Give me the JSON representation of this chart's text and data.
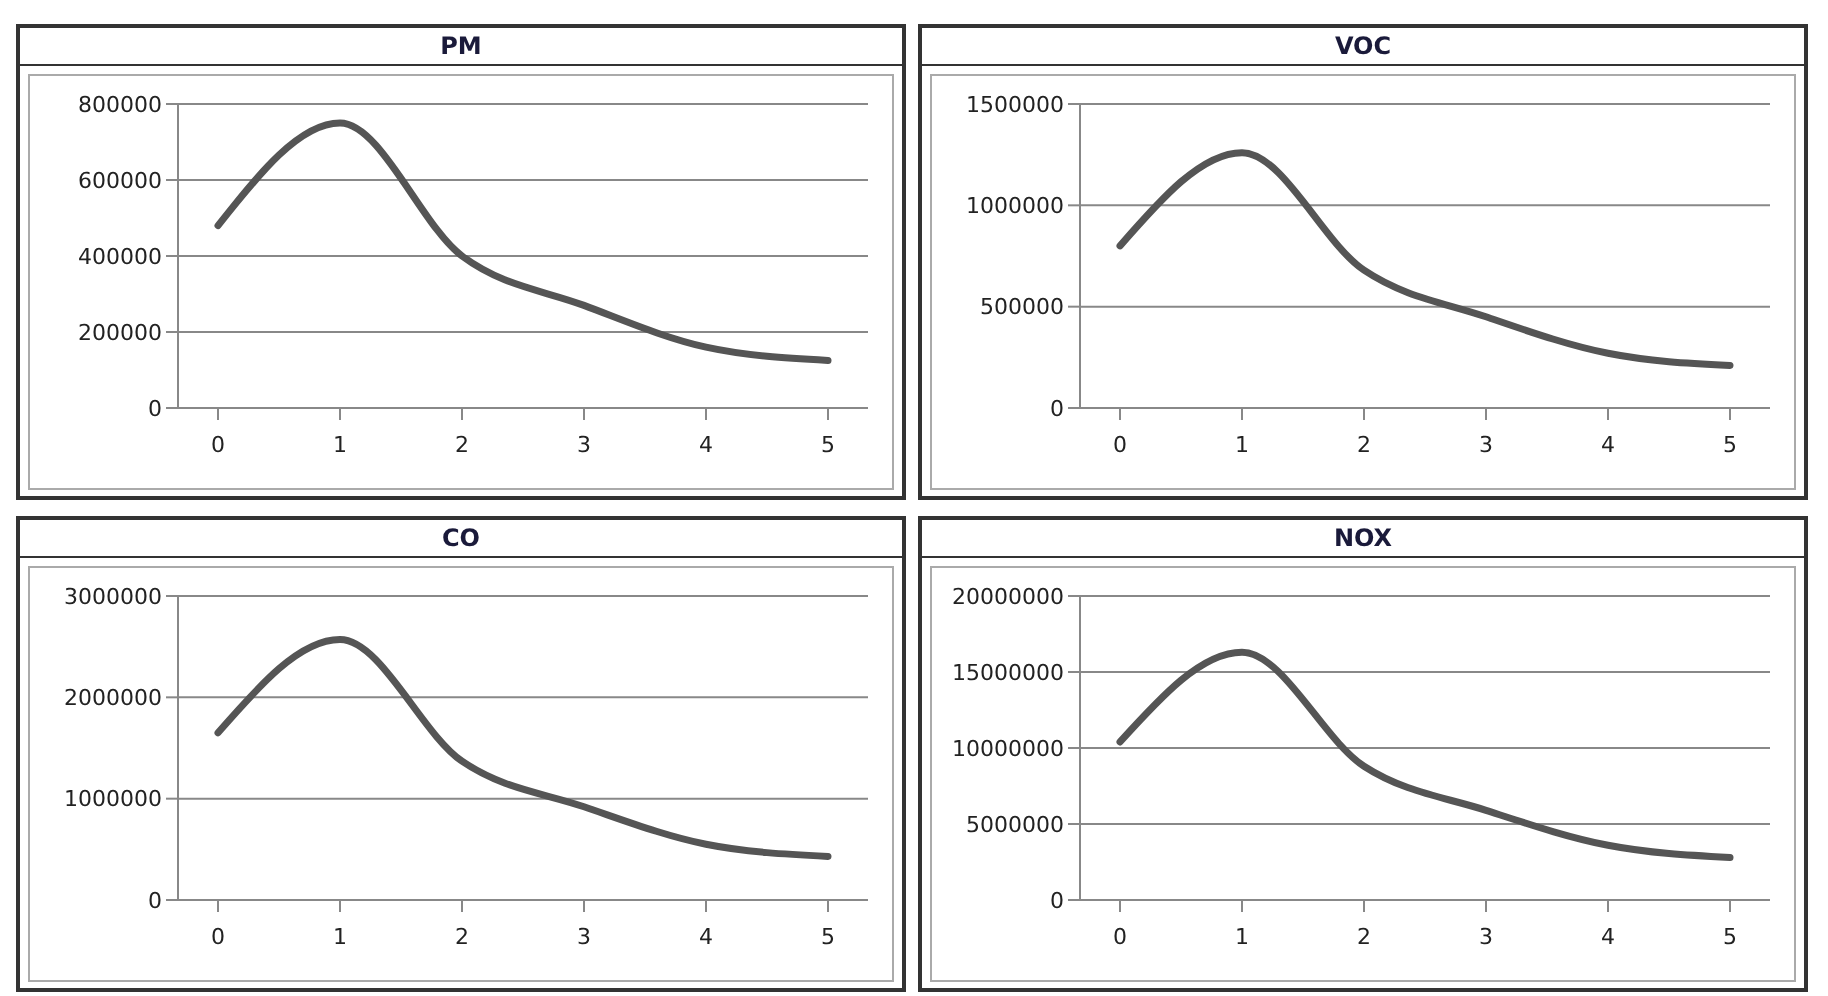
{
  "chart_data": [
    {
      "type": "line",
      "title": "PM",
      "categories": [
        "0",
        "1",
        "2",
        "3",
        "4",
        "5"
      ],
      "series": [
        {
          "color": "#555555",
          "values": [
            480000,
            750000,
            400000,
            270000,
            160000,
            125000
          ]
        }
      ],
      "ylim": [
        0,
        800000
      ],
      "yticks": [
        0,
        200000,
        400000,
        600000,
        800000
      ],
      "grid": "y",
      "marker": "none",
      "line_style": "solid"
    },
    {
      "type": "line",
      "title": "VOC",
      "categories": [
        "0",
        "1",
        "2",
        "3",
        "4",
        "5"
      ],
      "series": [
        {
          "color": "#555555",
          "values": [
            800000,
            1260000,
            680000,
            450000,
            270000,
            210000
          ]
        }
      ],
      "ylim": [
        0,
        1500000
      ],
      "yticks": [
        0,
        500000,
        1000000,
        1500000
      ],
      "grid": "y",
      "marker": "none",
      "line_style": "solid"
    },
    {
      "type": "line",
      "title": "CO",
      "categories": [
        "0",
        "1",
        "2",
        "3",
        "4",
        "5"
      ],
      "series": [
        {
          "color": "#555555",
          "values": [
            1650000,
            2570000,
            1370000,
            920000,
            550000,
            430000
          ]
        }
      ],
      "ylim": [
        0,
        3000000
      ],
      "yticks": [
        0,
        1000000,
        2000000,
        3000000
      ],
      "grid": "y",
      "marker": "none",
      "line_style": "solid"
    },
    {
      "type": "line",
      "title": "NOX",
      "categories": [
        "0",
        "1",
        "2",
        "3",
        "4",
        "5"
      ],
      "series": [
        {
          "color": "#555555",
          "values": [
            10400000,
            16300000,
            8800000,
            5900000,
            3600000,
            2800000
          ]
        }
      ],
      "ylim": [
        0,
        20000000
      ],
      "yticks": [
        0,
        5000000,
        10000000,
        15000000,
        20000000
      ],
      "grid": "y",
      "marker": "none",
      "line_style": "solid"
    }
  ]
}
